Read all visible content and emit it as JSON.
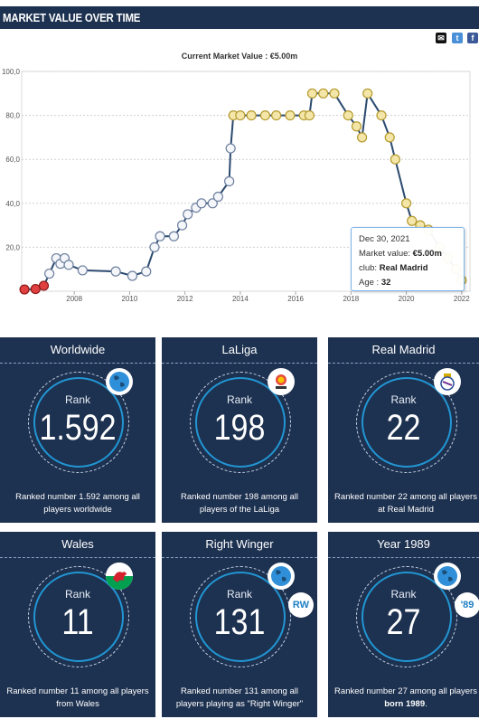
{
  "header": {
    "title": "MARKET VALUE OVER TIME"
  },
  "share": {
    "mail": "✉",
    "twitter": "t",
    "facebook": "f"
  },
  "chart_title": "Current Market Value : €5.00m",
  "chart_data": {
    "type": "line",
    "title": "Current Market Value : €5.00m",
    "xlabel": "",
    "ylabel": "",
    "xlim": [
      2006.1,
      2022.3
    ],
    "ylim": [
      0,
      100
    ],
    "y_ticks": [
      20,
      40,
      60,
      80,
      100
    ],
    "y_tick_labels": [
      "20,0",
      "40,0",
      "60,0",
      "80,0",
      "100,0"
    ],
    "x_ticks": [
      2008,
      2010,
      2012,
      2014,
      2016,
      2018,
      2020,
      2022
    ],
    "x_tick_labels": [
      "2008",
      "2010",
      "2012",
      "2014",
      "2016",
      "2018",
      "2020",
      "2022"
    ],
    "grid": "horizontal",
    "series": [
      {
        "line_color": "#2b4a6f",
        "points": [
          {
            "x": 2006.2,
            "y": 0.8,
            "club": "Southampton"
          },
          {
            "x": 2006.6,
            "y": 1.0,
            "club": "Southampton"
          },
          {
            "x": 2006.9,
            "y": 2.5,
            "club": "Southampton"
          },
          {
            "x": 2007.1,
            "y": 8.0,
            "club": "Tottenham"
          },
          {
            "x": 2007.35,
            "y": 15.0,
            "club": "Tottenham"
          },
          {
            "x": 2007.5,
            "y": 12.5,
            "club": "Tottenham"
          },
          {
            "x": 2007.65,
            "y": 15.0,
            "club": "Tottenham"
          },
          {
            "x": 2007.8,
            "y": 12.0,
            "club": "Tottenham"
          },
          {
            "x": 2008.3,
            "y": 9.5,
            "club": "Tottenham"
          },
          {
            "x": 2009.5,
            "y": 9.0,
            "club": "Tottenham"
          },
          {
            "x": 2010.1,
            "y": 7.0,
            "club": "Tottenham"
          },
          {
            "x": 2010.6,
            "y": 9.0,
            "club": "Tottenham"
          },
          {
            "x": 2010.9,
            "y": 20.0,
            "club": "Tottenham"
          },
          {
            "x": 2011.1,
            "y": 25.0,
            "club": "Tottenham"
          },
          {
            "x": 2011.6,
            "y": 25.0,
            "club": "Tottenham"
          },
          {
            "x": 2011.9,
            "y": 30.0,
            "club": "Tottenham"
          },
          {
            "x": 2012.1,
            "y": 35.0,
            "club": "Tottenham"
          },
          {
            "x": 2012.4,
            "y": 38.0,
            "club": "Tottenham"
          },
          {
            "x": 2012.6,
            "y": 40.0,
            "club": "Tottenham"
          },
          {
            "x": 2013.0,
            "y": 40.0,
            "club": "Tottenham"
          },
          {
            "x": 2013.2,
            "y": 43.0,
            "club": "Tottenham"
          },
          {
            "x": 2013.6,
            "y": 50.0,
            "club": "Tottenham"
          },
          {
            "x": 2013.65,
            "y": 65.0,
            "club": "Tottenham"
          },
          {
            "x": 2013.75,
            "y": 80.0,
            "club": "Real Madrid"
          },
          {
            "x": 2014.0,
            "y": 80.0,
            "club": "Real Madrid"
          },
          {
            "x": 2014.4,
            "y": 80.0,
            "club": "Real Madrid"
          },
          {
            "x": 2014.9,
            "y": 80.0,
            "club": "Real Madrid"
          },
          {
            "x": 2015.3,
            "y": 80.0,
            "club": "Real Madrid"
          },
          {
            "x": 2015.8,
            "y": 80.0,
            "club": "Real Madrid"
          },
          {
            "x": 2016.3,
            "y": 80.0,
            "club": "Real Madrid"
          },
          {
            "x": 2016.5,
            "y": 80.0,
            "club": "Real Madrid"
          },
          {
            "x": 2016.6,
            "y": 90.0,
            "club": "Real Madrid"
          },
          {
            "x": 2017.0,
            "y": 90.0,
            "club": "Real Madrid"
          },
          {
            "x": 2017.4,
            "y": 90.0,
            "club": "Real Madrid"
          },
          {
            "x": 2017.9,
            "y": 80.0,
            "club": "Real Madrid"
          },
          {
            "x": 2018.2,
            "y": 75.0,
            "club": "Real Madrid"
          },
          {
            "x": 2018.4,
            "y": 70.0,
            "club": "Real Madrid"
          },
          {
            "x": 2018.6,
            "y": 90.0,
            "club": "Real Madrid"
          },
          {
            "x": 2019.1,
            "y": 80.0,
            "club": "Real Madrid"
          },
          {
            "x": 2019.4,
            "y": 70.0,
            "club": "Real Madrid"
          },
          {
            "x": 2019.6,
            "y": 60.0,
            "club": "Real Madrid"
          },
          {
            "x": 2020.0,
            "y": 40.0,
            "club": "Real Madrid"
          },
          {
            "x": 2020.2,
            "y": 32.0,
            "club": "Real Madrid"
          },
          {
            "x": 2020.5,
            "y": 30.0,
            "club": "Real Madrid"
          },
          {
            "x": 2020.8,
            "y": 28.0,
            "club": "Real Madrid"
          },
          {
            "x": 2021.2,
            "y": 20.0,
            "club": "Real Madrid"
          },
          {
            "x": 2021.5,
            "y": 15.0,
            "club": "Real Madrid"
          },
          {
            "x": 2021.8,
            "y": 10.0,
            "club": "Real Madrid"
          },
          {
            "x": 2022.0,
            "y": 5.0,
            "club": "Real Madrid"
          }
        ]
      }
    ],
    "tooltip": {
      "date": "Dec 30, 2021",
      "value_label": "Market value:",
      "value": "€5.00m",
      "club_label": "club:",
      "club": "Real Madrid",
      "age_label": "Age :",
      "age": "32"
    }
  },
  "cards": [
    {
      "title": "Worldwide",
      "rank_label": "Rank",
      "rank": "1.592",
      "desc": "Ranked number 1.592 among all players worldwide",
      "badge": "globe-icon",
      "badge2": ""
    },
    {
      "title": "LaLiga",
      "rank_label": "Rank",
      "rank": "198",
      "desc": "Ranked number 198 among all players of the LaLiga",
      "badge": "laliga-logo",
      "badge2": ""
    },
    {
      "title": "Real Madrid",
      "rank_label": "Rank",
      "rank": "22",
      "desc": "Ranked number 22 among all players at Real Madrid",
      "badge": "real-madrid-crest",
      "badge2": ""
    },
    {
      "title": "Wales",
      "rank_label": "Rank",
      "rank": "11",
      "desc": "Ranked number 11 among all players from Wales",
      "badge": "wales-flag-icon",
      "badge2": ""
    },
    {
      "title": "Right Winger",
      "rank_label": "Rank",
      "rank": "131",
      "desc": "Ranked number 131 among all players playing as \"Right Winger\"",
      "badge": "globe-icon",
      "badge2": "RW"
    },
    {
      "title": "Year 1989",
      "rank_label": "Rank",
      "rank": "27",
      "desc_prefix": "Ranked number 27 among all players ",
      "desc_bold": "born 1989",
      "desc_suffix": ".",
      "badge": "globe-icon",
      "badge2": "'89"
    }
  ],
  "colors": {
    "navy": "#1d3150",
    "accent_blue": "#2196d3",
    "line": "#2b4a6f"
  }
}
